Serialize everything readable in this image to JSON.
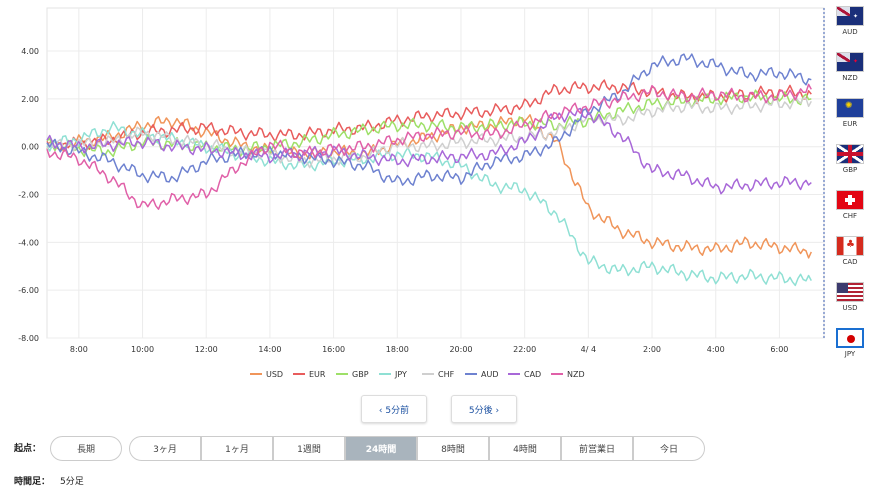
{
  "chart_data": {
    "type": "line",
    "y_ticks": [
      "4.00",
      "2.00",
      "0.00",
      "-2.00",
      "-4.00",
      "-6.00",
      "-8.00"
    ],
    "ylim": [
      -8,
      5.8
    ],
    "x_ticks": [
      "8:00",
      "10:00",
      "12:00",
      "14:00",
      "16:00",
      "18:00",
      "20:00",
      "22:00",
      "4/ 4",
      "2:00",
      "4:00",
      "6:00"
    ],
    "x_tick_hours": [
      8,
      10,
      12,
      14,
      16,
      18,
      20,
      22,
      24,
      26,
      28,
      30
    ],
    "xlim": [
      7,
      31.4
    ],
    "grid": true,
    "legend_position": "bottom",
    "series": [
      {
        "name": "USD",
        "color": "#f0955a",
        "points": [
          [
            7,
            -0.1
          ],
          [
            8,
            0.2
          ],
          [
            9,
            0.4
          ],
          [
            10,
            0.9
          ],
          [
            11,
            1.1
          ],
          [
            12,
            0.6
          ],
          [
            13,
            0.1
          ],
          [
            14,
            -0.2
          ],
          [
            15,
            -0.3
          ],
          [
            16,
            -0.2
          ],
          [
            17,
            -0.3
          ],
          [
            18,
            0.1
          ],
          [
            19,
            0.4
          ],
          [
            20,
            0.8
          ],
          [
            21,
            0.9
          ],
          [
            22,
            1.2
          ],
          [
            23,
            0.2
          ],
          [
            24,
            -2.6
          ],
          [
            25,
            -3.5
          ],
          [
            26,
            -4.0
          ],
          [
            27,
            -4.2
          ],
          [
            28,
            -4.3
          ],
          [
            29,
            -4.0
          ],
          [
            30,
            -4.2
          ],
          [
            31,
            -4.4
          ]
        ]
      },
      {
        "name": "EUR",
        "color": "#e85c5c",
        "points": [
          [
            7,
            0.1
          ],
          [
            8,
            0.1
          ],
          [
            9,
            0.3
          ],
          [
            10,
            0.6
          ],
          [
            11,
            0.7
          ],
          [
            12,
            0.8
          ],
          [
            13,
            0.6
          ],
          [
            14,
            0.5
          ],
          [
            15,
            0.5
          ],
          [
            16,
            0.7
          ],
          [
            17,
            0.8
          ],
          [
            18,
            1.1
          ],
          [
            19,
            1.3
          ],
          [
            20,
            1.4
          ],
          [
            21,
            1.5
          ],
          [
            22,
            1.7
          ],
          [
            23,
            2.4
          ],
          [
            24,
            2.5
          ],
          [
            25,
            2.5
          ],
          [
            26,
            2.3
          ],
          [
            27,
            2.1
          ],
          [
            28,
            2.1
          ],
          [
            29,
            2.2
          ],
          [
            30,
            2.3
          ],
          [
            31,
            2.2
          ]
        ]
      },
      {
        "name": "GBP",
        "color": "#9ee068",
        "points": [
          [
            7,
            0.2
          ],
          [
            8,
            -0.1
          ],
          [
            9,
            -0.2
          ],
          [
            10,
            0.2
          ],
          [
            11,
            0.1
          ],
          [
            12,
            0.0
          ],
          [
            13,
            -0.1
          ],
          [
            14,
            0.0
          ],
          [
            15,
            0.2
          ],
          [
            16,
            0.5
          ],
          [
            17,
            0.7
          ],
          [
            18,
            0.9
          ],
          [
            19,
            0.9
          ],
          [
            20,
            0.8
          ],
          [
            21,
            0.9
          ],
          [
            22,
            1.0
          ],
          [
            23,
            0.9
          ],
          [
            24,
            1.1
          ],
          [
            25,
            1.5
          ],
          [
            26,
            1.8
          ],
          [
            27,
            1.9
          ],
          [
            28,
            2.0
          ],
          [
            29,
            2.1
          ],
          [
            30,
            2.0
          ],
          [
            31,
            2.0
          ]
        ]
      },
      {
        "name": "JPY",
        "color": "#8fe0d4",
        "points": [
          [
            7,
            0.1
          ],
          [
            8,
            0.3
          ],
          [
            9,
            0.8
          ],
          [
            10,
            0.5
          ],
          [
            11,
            0.3
          ],
          [
            12,
            0.0
          ],
          [
            13,
            -0.3
          ],
          [
            14,
            -0.6
          ],
          [
            15,
            -0.8
          ],
          [
            16,
            -0.6
          ],
          [
            17,
            -0.5
          ],
          [
            18,
            -0.3
          ],
          [
            19,
            -0.4
          ],
          [
            20,
            -0.8
          ],
          [
            21,
            -1.6
          ],
          [
            22,
            -1.8
          ],
          [
            23,
            -2.8
          ],
          [
            24,
            -4.8
          ],
          [
            25,
            -5.2
          ],
          [
            26,
            -5.0
          ],
          [
            27,
            -5.3
          ],
          [
            28,
            -5.5
          ],
          [
            29,
            -5.4
          ],
          [
            30,
            -5.5
          ],
          [
            31,
            -5.6
          ]
        ]
      },
      {
        "name": "CHF",
        "color": "#cfcfcf",
        "points": [
          [
            7,
            0.0
          ],
          [
            8,
            0.1
          ],
          [
            9,
            0.2
          ],
          [
            10,
            0.6
          ],
          [
            11,
            0.3
          ],
          [
            12,
            0.1
          ],
          [
            13,
            -0.2
          ],
          [
            14,
            -0.3
          ],
          [
            15,
            -0.6
          ],
          [
            16,
            -0.5
          ],
          [
            17,
            -0.4
          ],
          [
            18,
            0.1
          ],
          [
            19,
            0.0
          ],
          [
            20,
            0.2
          ],
          [
            21,
            0.3
          ],
          [
            22,
            0.4
          ],
          [
            23,
            0.6
          ],
          [
            24,
            1.2
          ],
          [
            25,
            1.1
          ],
          [
            26,
            1.5
          ],
          [
            27,
            1.7
          ],
          [
            28,
            1.6
          ],
          [
            29,
            1.7
          ],
          [
            30,
            1.8
          ],
          [
            31,
            1.9
          ]
        ]
      },
      {
        "name": "AUD",
        "color": "#6e82d0",
        "points": [
          [
            7,
            0.1
          ],
          [
            8,
            -0.2
          ],
          [
            9,
            -0.6
          ],
          [
            10,
            -1.2
          ],
          [
            11,
            -1.3
          ],
          [
            12,
            -0.6
          ],
          [
            13,
            -0.3
          ],
          [
            14,
            -0.2
          ],
          [
            15,
            -0.4
          ],
          [
            16,
            -0.6
          ],
          [
            17,
            -0.8
          ],
          [
            18,
            -1.5
          ],
          [
            19,
            -1.2
          ],
          [
            20,
            -1.3
          ],
          [
            21,
            -0.6
          ],
          [
            22,
            -0.4
          ],
          [
            23,
            0.2
          ],
          [
            24,
            1.5
          ],
          [
            25,
            2.2
          ],
          [
            26,
            3.4
          ],
          [
            27,
            3.7
          ],
          [
            28,
            3.4
          ],
          [
            29,
            3.0
          ],
          [
            30,
            3.1
          ],
          [
            31,
            2.8
          ]
        ]
      },
      {
        "name": "CAD",
        "color": "#a868d8",
        "points": [
          [
            7,
            0.2
          ],
          [
            8,
            0.0
          ],
          [
            9,
            0.1
          ],
          [
            10,
            0.2
          ],
          [
            11,
            0.0
          ],
          [
            12,
            -0.1
          ],
          [
            13,
            -0.3
          ],
          [
            14,
            -0.4
          ],
          [
            15,
            -0.3
          ],
          [
            16,
            -0.2
          ],
          [
            17,
            -0.4
          ],
          [
            18,
            -0.6
          ],
          [
            19,
            -0.5
          ],
          [
            20,
            -0.4
          ],
          [
            21,
            -0.3
          ],
          [
            22,
            0.2
          ],
          [
            23,
            1.3
          ],
          [
            24,
            1.4
          ],
          [
            25,
            0.5
          ],
          [
            26,
            -1.0
          ],
          [
            27,
            -1.2
          ],
          [
            28,
            -1.7
          ],
          [
            29,
            -1.6
          ],
          [
            30,
            -1.5
          ],
          [
            31,
            -1.5
          ]
        ]
      },
      {
        "name": "NZD",
        "color": "#e060a8",
        "points": [
          [
            7,
            -0.2
          ],
          [
            8,
            -0.5
          ],
          [
            9,
            -1.3
          ],
          [
            10,
            -2.5
          ],
          [
            11,
            -2.2
          ],
          [
            12,
            -2.0
          ],
          [
            13,
            -0.8
          ],
          [
            14,
            0.1
          ],
          [
            15,
            -0.3
          ],
          [
            16,
            -0.1
          ],
          [
            17,
            0.0
          ],
          [
            18,
            0.3
          ],
          [
            19,
            0.5
          ],
          [
            20,
            0.6
          ],
          [
            21,
            0.5
          ],
          [
            22,
            0.9
          ],
          [
            23,
            1.4
          ],
          [
            24,
            1.7
          ],
          [
            25,
            2.0
          ],
          [
            26,
            2.3
          ],
          [
            27,
            2.1
          ],
          [
            28,
            2.2
          ],
          [
            29,
            2.1
          ],
          [
            30,
            2.1
          ],
          [
            31,
            2.4
          ]
        ]
      }
    ]
  },
  "flags": [
    {
      "code": "AUD",
      "selected": false
    },
    {
      "code": "NZD",
      "selected": false
    },
    {
      "code": "EUR",
      "selected": false
    },
    {
      "code": "GBP",
      "selected": false
    },
    {
      "code": "CHF",
      "selected": false
    },
    {
      "code": "CAD",
      "selected": false
    },
    {
      "code": "USD",
      "selected": false
    },
    {
      "code": "JPY",
      "selected": true
    }
  ],
  "nav": {
    "prev_label": "‹ 5分前",
    "next_label": "5分後 ›"
  },
  "period": {
    "label": "起点：",
    "long_term": "長期",
    "options": [
      "3ヶ月",
      "1ヶ月",
      "1週間",
      "24時間",
      "8時間",
      "4時間",
      "前営業日",
      "今日"
    ],
    "active": "24時間"
  },
  "timeframe": {
    "label": "時間足：",
    "value": "5分足"
  }
}
